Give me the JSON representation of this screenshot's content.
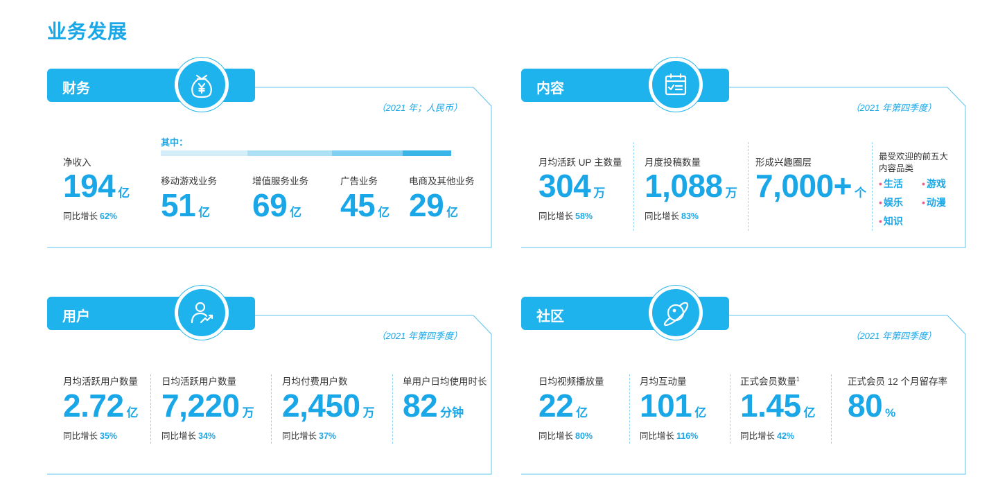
{
  "page_title": "业务发展",
  "colors": {
    "accent": "#1aa7e8",
    "header": "#1fb3ed",
    "bullet": "#f25d8e",
    "bar": [
      "#d3eef9",
      "#aee0f5",
      "#7fd0f1",
      "#3ab5e8"
    ]
  },
  "finance": {
    "title": "财务",
    "icon": "money-bag-yen-icon",
    "note": "（2021 年；人民币）",
    "net_revenue": {
      "label": "净收入",
      "value": "194",
      "unit": "亿",
      "growth_label": "同比增长",
      "growth": "62%"
    },
    "breakdown_label": "其中：",
    "breakdown_shares": [
      0.25,
      0.245,
      0.205,
      0.14
    ],
    "segments": [
      {
        "label": "移动游戏业务",
        "value": "51",
        "unit": "亿"
      },
      {
        "label": "增值服务业务",
        "value": "69",
        "unit": "亿"
      },
      {
        "label": "广告业务",
        "value": "45",
        "unit": "亿"
      },
      {
        "label": "电商及其他业务",
        "value": "29",
        "unit": "亿"
      }
    ]
  },
  "content": {
    "title": "内容",
    "icon": "calendar-check-icon",
    "note": "（2021 年第四季度）",
    "stats": [
      {
        "label": "月均活跃 UP 主数量",
        "value": "304",
        "unit": "万",
        "growth_label": "同比增长",
        "growth": "58%"
      },
      {
        "label": "月度投稿数量",
        "value": "1,088",
        "unit": "万",
        "growth_label": "同比增长",
        "growth": "83%"
      },
      {
        "label": "形成兴趣圈层",
        "value": "7,000+",
        "unit": "个"
      }
    ],
    "categories_label_1": "最受欢迎的前五大",
    "categories_label_2": "内容品类",
    "categories": [
      "生活",
      "游戏",
      "娱乐",
      "动漫",
      "知识"
    ]
  },
  "users": {
    "title": "用户",
    "icon": "user-growth-icon",
    "note": "（2021 年第四季度）",
    "stats": [
      {
        "label": "月均活跃用户数量",
        "value": "2.72",
        "unit": "亿",
        "growth_label": "同比增长",
        "growth": "35%"
      },
      {
        "label": "日均活跃用户数量",
        "value": "7,220",
        "unit": "万",
        "growth_label": "同比增长",
        "growth": "34%"
      },
      {
        "label": "月均付费用户数",
        "value": "2,450",
        "unit": "万",
        "growth_label": "同比增长",
        "growth": "37%"
      },
      {
        "label": "单用户日均使用时长",
        "value": "82",
        "unit": "分钟"
      }
    ]
  },
  "community": {
    "title": "社区",
    "icon": "planet-icon",
    "note": "（2021 年第四季度）",
    "stats": [
      {
        "label": "日均视频播放量",
        "value": "22",
        "unit": "亿",
        "growth_label": "同比增长",
        "growth": "80%"
      },
      {
        "label": "月均互动量",
        "value": "101",
        "unit": "亿",
        "growth_label": "同比增长",
        "growth": "116%"
      },
      {
        "label": "正式会员数量",
        "footnote": "1",
        "value": "1.45",
        "unit": "亿",
        "growth_label": "同比增长",
        "growth": "42%"
      },
      {
        "label": "正式会员 12 个月留存率",
        "value": "80",
        "unit": "%"
      }
    ]
  }
}
